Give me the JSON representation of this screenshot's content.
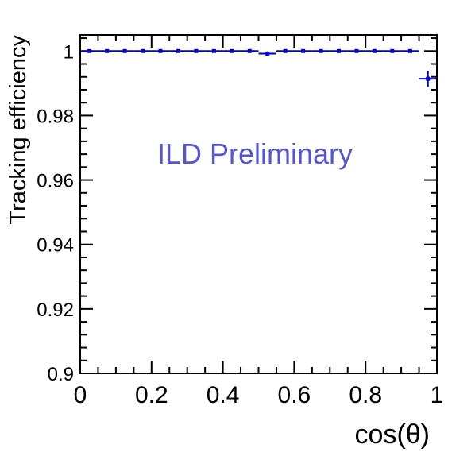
{
  "chart_data": {
    "type": "scatter",
    "title": "",
    "xlabel": "cos(θ)",
    "ylabel": "Tracking efficiency",
    "xlim": [
      0,
      1
    ],
    "ylim": [
      0.9,
      1.005
    ],
    "x_ticks": [
      {
        "value": 0,
        "label": "0"
      },
      {
        "value": 0.2,
        "label": "0.2"
      },
      {
        "value": 0.4,
        "label": "0.4"
      },
      {
        "value": 0.6,
        "label": "0.6"
      },
      {
        "value": 0.8,
        "label": "0.8"
      },
      {
        "value": 1,
        "label": "1"
      }
    ],
    "y_ticks": [
      {
        "value": 0.9,
        "label": "0.9"
      },
      {
        "value": 0.92,
        "label": "0.92"
      },
      {
        "value": 0.94,
        "label": "0.94"
      },
      {
        "value": 0.96,
        "label": "0.96"
      },
      {
        "value": 0.98,
        "label": "0.98"
      },
      {
        "value": 1.0,
        "label": "1"
      }
    ],
    "annotation": "ILD Preliminary",
    "colors": {
      "series": "#0000cc",
      "annotation": "#5555d6",
      "axes": "#000000"
    },
    "grid": false,
    "legend": "none",
    "series": [
      {
        "points": [
          {
            "x": 0.025,
            "xerr": 0.025,
            "y": 1.0,
            "yerr": 0.0004
          },
          {
            "x": 0.075,
            "xerr": 0.025,
            "y": 1.0,
            "yerr": 0.0004
          },
          {
            "x": 0.125,
            "xerr": 0.025,
            "y": 1.0,
            "yerr": 0.0004
          },
          {
            "x": 0.175,
            "xerr": 0.025,
            "y": 1.0,
            "yerr": 0.0004
          },
          {
            "x": 0.225,
            "xerr": 0.025,
            "y": 1.0,
            "yerr": 0.0004
          },
          {
            "x": 0.275,
            "xerr": 0.025,
            "y": 1.0,
            "yerr": 0.0004
          },
          {
            "x": 0.325,
            "xerr": 0.025,
            "y": 1.0,
            "yerr": 0.0004
          },
          {
            "x": 0.375,
            "xerr": 0.025,
            "y": 1.0,
            "yerr": 0.0004
          },
          {
            "x": 0.425,
            "xerr": 0.025,
            "y": 1.0,
            "yerr": 0.0004
          },
          {
            "x": 0.475,
            "xerr": 0.025,
            "y": 1.0,
            "yerr": 0.0004
          },
          {
            "x": 0.525,
            "xerr": 0.025,
            "y": 0.9992,
            "yerr": 0.0007
          },
          {
            "x": 0.575,
            "xerr": 0.025,
            "y": 1.0,
            "yerr": 0.0004
          },
          {
            "x": 0.625,
            "xerr": 0.025,
            "y": 1.0,
            "yerr": 0.0004
          },
          {
            "x": 0.675,
            "xerr": 0.025,
            "y": 1.0,
            "yerr": 0.0004
          },
          {
            "x": 0.725,
            "xerr": 0.025,
            "y": 1.0,
            "yerr": 0.0004
          },
          {
            "x": 0.775,
            "xerr": 0.025,
            "y": 1.0,
            "yerr": 0.0004
          },
          {
            "x": 0.825,
            "xerr": 0.025,
            "y": 1.0,
            "yerr": 0.0004
          },
          {
            "x": 0.875,
            "xerr": 0.025,
            "y": 1.0,
            "yerr": 0.0004
          },
          {
            "x": 0.925,
            "xerr": 0.025,
            "y": 1.0,
            "yerr": 0.0004
          },
          {
            "x": 0.975,
            "xerr": 0.025,
            "y": 0.9914,
            "yerr": 0.0025
          }
        ]
      }
    ]
  }
}
